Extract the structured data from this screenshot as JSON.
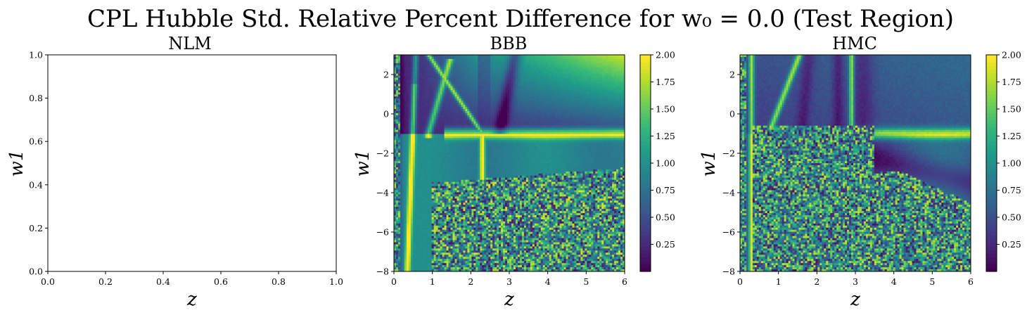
{
  "figure": {
    "title": "CPL Hubble Std. Relative Percent Difference for w₀ = 0.0 (Test Region)"
  },
  "colors": {
    "viridis": [
      "#440154",
      "#482878",
      "#3e4989",
      "#31688e",
      "#26828e",
      "#1f9e89",
      "#35b779",
      "#6ece58",
      "#b5de2b",
      "#fde725"
    ]
  },
  "chart_data": [
    {
      "type": "table",
      "title": "NLM",
      "xlabel": "z",
      "ylabel": "w1",
      "xlim": [
        0,
        1
      ],
      "ylim": [
        0,
        1
      ],
      "xticks": [
        "0.0",
        "0.2",
        "0.4",
        "0.6",
        "0.8",
        "1.0"
      ],
      "yticks": [
        "0.0",
        "0.2",
        "0.4",
        "0.6",
        "0.8",
        "1.0"
      ],
      "grid": false
    },
    {
      "type": "heatmap",
      "title": "BBB",
      "xlabel": "z",
      "ylabel": "w1",
      "xlim": [
        0,
        6
      ],
      "ylim": [
        -8,
        3
      ],
      "xticks": [
        "0",
        "1",
        "2",
        "3",
        "4",
        "5",
        "6"
      ],
      "yticks": [
        "−8",
        "−6",
        "−4",
        "−2",
        "0",
        "2"
      ],
      "colorbar": {
        "min": 0,
        "max": 2.0,
        "ticks": [
          "0.25",
          "0.50",
          "0.75",
          "1.00",
          "1.25",
          "1.50",
          "1.75",
          "2.00"
        ],
        "colormap": "viridis"
      },
      "features": {
        "ridge_vertical_z": [
          0.35,
          2.3
        ],
        "ridge_horizontal_w1": -1.0,
        "noise_region": "z > 1.0 and w1 < -3.5"
      }
    },
    {
      "type": "heatmap",
      "title": "HMC",
      "xlabel": "z",
      "ylabel": "w1",
      "xlim": [
        0,
        6
      ],
      "ylim": [
        -8,
        3
      ],
      "xticks": [
        "0",
        "1",
        "2",
        "3",
        "4",
        "5",
        "6"
      ],
      "yticks": [
        "−8",
        "−6",
        "−4",
        "−2",
        "0",
        "2"
      ],
      "colorbar": {
        "min": 0,
        "max": 2.0,
        "ticks": [
          "0.25",
          "0.50",
          "0.75",
          "1.00",
          "1.25",
          "1.50",
          "1.75",
          "2.00"
        ],
        "colormap": "viridis"
      },
      "features": {
        "ridge_vertical_z": [
          0.3,
          0.75,
          2.9
        ],
        "ridge_horizontal_w1": -1.0,
        "noise_region": "z < 3.5 and w1 < -0.5"
      }
    }
  ]
}
